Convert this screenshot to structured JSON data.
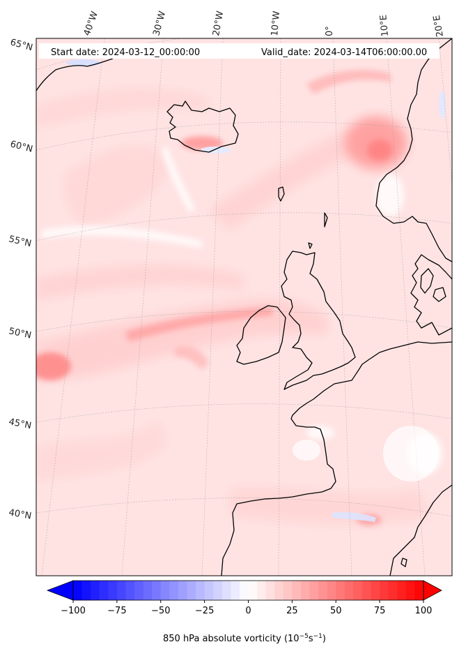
{
  "header": {
    "start_date": "Start date: 2024-03-12_00:00:00",
    "valid_date": "Valid_date: 2024-03-14T06:00:00.00"
  },
  "lon_labels": [
    "40°W",
    "30°W",
    "20°W",
    "10°W",
    "0°",
    "10°E",
    "20°E"
  ],
  "lat_labels": [
    "65°N",
    "60°N",
    "55°N",
    "50°N",
    "45°N",
    "40°N"
  ],
  "colorbar": {
    "ticks": [
      "−100",
      "−75",
      "−50",
      "−25",
      "0",
      "25",
      "50",
      "75",
      "100"
    ],
    "min": -100,
    "max": 100,
    "levels": 40,
    "cmap": "bwr",
    "extend": "both",
    "label_main": "850 hPa absolute vorticity (10",
    "label_exp1": "−5",
    "label_mid": "s",
    "label_exp2": "−1",
    "label_end": ")"
  },
  "colors": {
    "negative": "#0000ff",
    "zero": "#ffffff",
    "positive": "#ff0000",
    "coastline": "#000000",
    "gridline": "#999999"
  }
}
